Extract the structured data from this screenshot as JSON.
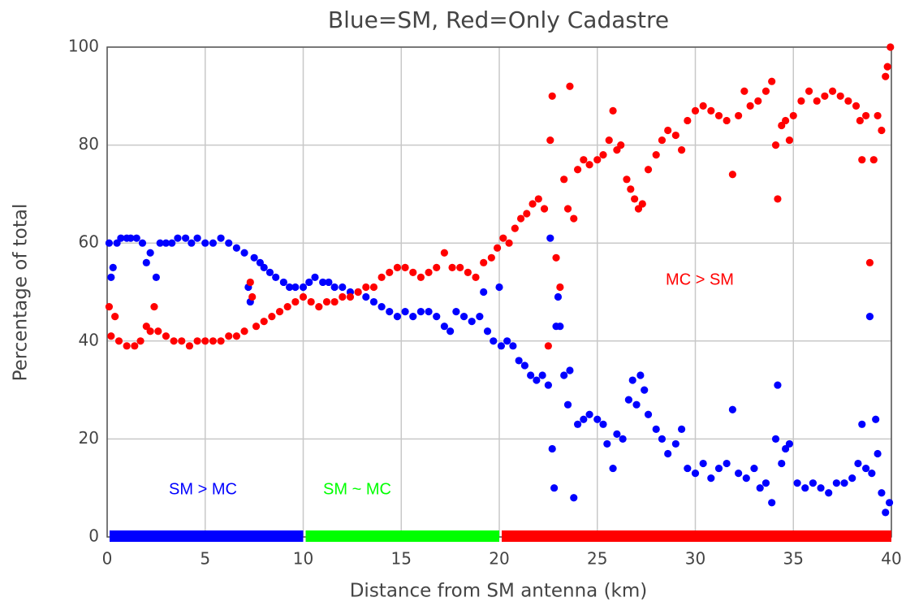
{
  "chart_data": {
    "type": "scatter",
    "title": "Blue=SM, Red=Only Cadastre",
    "xlabel": "Distance from SM antenna (km)",
    "ylabel": "Percentage of total",
    "xlim": [
      0,
      40
    ],
    "ylim": [
      0,
      100
    ],
    "xticks": [
      0,
      5,
      10,
      15,
      20,
      25,
      30,
      35,
      40
    ],
    "yticks": [
      0,
      20,
      40,
      60,
      80,
      100
    ],
    "grid": true,
    "series": [
      {
        "color": "#0000ff",
        "x": [
          0.1,
          0.2,
          0.3,
          0.5,
          0.7,
          1,
          1.2,
          1.5,
          1.8,
          2,
          2.2,
          2.5,
          2.7,
          3,
          3.3,
          3.6,
          4,
          4.3,
          4.6,
          5,
          5.4,
          5.8,
          6.2,
          6.6,
          7,
          7.2,
          7.3,
          7.5,
          7.8,
          8,
          8.3,
          8.6,
          9,
          9.3,
          9.6,
          10,
          10.3,
          10.6,
          11,
          11.3,
          11.6,
          12,
          12.4,
          12.8,
          13.2,
          13.6,
          14,
          14.4,
          14.8,
          15.2,
          15.6,
          16,
          16.4,
          16.8,
          17.2,
          17.5,
          17.8,
          18.2,
          18.6,
          19,
          19.2,
          19.4,
          19.7,
          20,
          20.1,
          20.4,
          20.7,
          21,
          21.3,
          21.6,
          21.9,
          22.2,
          22.5,
          22.6,
          22.7,
          22.8,
          22.9,
          23,
          23.1,
          23.3,
          23.5,
          23.6,
          23.8,
          24,
          24.3,
          24.6,
          25,
          25.3,
          25.5,
          25.8,
          26,
          26.3,
          26.6,
          26.8,
          27,
          27.2,
          27.4,
          27.6,
          28,
          28.3,
          28.6,
          29,
          29.3,
          29.6,
          30,
          30.4,
          30.8,
          31.2,
          31.6,
          31.9,
          32.2,
          32.6,
          33,
          33.3,
          33.6,
          33.9,
          34.1,
          34.2,
          34.4,
          34.6,
          34.8,
          35.2,
          35.6,
          36,
          36.4,
          36.8,
          37.2,
          37.6,
          38,
          38.3,
          38.5,
          38.7,
          38.9,
          39,
          39.2,
          39.3,
          39.5,
          39.7,
          39.9
        ],
        "values": [
          60,
          53,
          55,
          60,
          61,
          61,
          61,
          61,
          60,
          56,
          58,
          53,
          60,
          60,
          60,
          61,
          61,
          60,
          61,
          60,
          60,
          61,
          60,
          59,
          58,
          51,
          48,
          57,
          56,
          55,
          54,
          53,
          52,
          51,
          51,
          51,
          52,
          53,
          52,
          52,
          51,
          51,
          50,
          50,
          49,
          48,
          47,
          46,
          45,
          46,
          45,
          46,
          46,
          45,
          43,
          42,
          46,
          45,
          44,
          45,
          50,
          42,
          40,
          51,
          39,
          40,
          39,
          36,
          35,
          33,
          32,
          33,
          31,
          61,
          18,
          10,
          43,
          49,
          43,
          33,
          27,
          34,
          8,
          23,
          24,
          25,
          24,
          23,
          19,
          14,
          21,
          20,
          28,
          32,
          27,
          33,
          30,
          25,
          22,
          20,
          17,
          19,
          22,
          14,
          13,
          15,
          12,
          14,
          15,
          26,
          13,
          12,
          14,
          10,
          11,
          7,
          20,
          31,
          15,
          18,
          19,
          11,
          10,
          11,
          10,
          9,
          11,
          11,
          12,
          15,
          23,
          14,
          45,
          13,
          24,
          17,
          9,
          5,
          7
        ]
      },
      {
        "color": "#ff0000",
        "x": [
          0.1,
          0.2,
          0.4,
          0.6,
          1,
          1.4,
          1.7,
          2,
          2.2,
          2.4,
          2.6,
          3,
          3.4,
          3.8,
          4.2,
          4.6,
          5,
          5.4,
          5.8,
          6.2,
          6.6,
          7,
          7.3,
          7.4,
          7.6,
          8,
          8.4,
          8.8,
          9.2,
          9.6,
          10,
          10.4,
          10.8,
          11.2,
          11.6,
          12,
          12.4,
          12.8,
          13.2,
          13.6,
          14,
          14.4,
          14.8,
          15.2,
          15.6,
          16,
          16.4,
          16.8,
          17.2,
          17.6,
          18,
          18.4,
          18.8,
          19.2,
          19.6,
          19.9,
          20.2,
          20.5,
          20.8,
          21.1,
          21.4,
          21.7,
          22,
          22.3,
          22.5,
          22.6,
          22.7,
          22.9,
          23.1,
          23.3,
          23.5,
          23.6,
          23.8,
          24,
          24.3,
          24.6,
          25,
          25.3,
          25.6,
          25.8,
          26,
          26.2,
          26.5,
          26.7,
          26.9,
          27.1,
          27.3,
          27.6,
          28,
          28.3,
          28.6,
          29,
          29.3,
          29.6,
          30,
          30.4,
          30.8,
          31.2,
          31.6,
          31.9,
          32.2,
          32.5,
          32.8,
          33.2,
          33.6,
          33.9,
          34.1,
          34.2,
          34.4,
          34.6,
          34.8,
          35,
          35.4,
          35.8,
          36.2,
          36.6,
          37,
          37.4,
          37.8,
          38.2,
          38.4,
          38.5,
          38.7,
          38.9,
          39.1,
          39.3,
          39.5,
          39.7,
          39.8,
          39.95
        ],
        "values": [
          47,
          41,
          45,
          40,
          39,
          39,
          40,
          43,
          42,
          47,
          42,
          41,
          40,
          40,
          39,
          40,
          40,
          40,
          40,
          41,
          41,
          42,
          52,
          49,
          43,
          44,
          45,
          46,
          47,
          48,
          49,
          48,
          47,
          48,
          48,
          49,
          49,
          50,
          51,
          51,
          53,
          54,
          55,
          55,
          54,
          53,
          54,
          55,
          58,
          55,
          55,
          54,
          53,
          56,
          57,
          59,
          61,
          60,
          63,
          65,
          66,
          68,
          69,
          67,
          39,
          81,
          90,
          57,
          51,
          73,
          67,
          92,
          65,
          75,
          77,
          76,
          77,
          78,
          81,
          87,
          79,
          80,
          73,
          71,
          69,
          67,
          68,
          75,
          78,
          81,
          83,
          82,
          79,
          85,
          87,
          88,
          87,
          86,
          85,
          74,
          86,
          91,
          88,
          89,
          91,
          93,
          80,
          69,
          84,
          85,
          81,
          86,
          89,
          91,
          89,
          90,
          91,
          90,
          89,
          88,
          85,
          77,
          86,
          56,
          77,
          86,
          83,
          94,
          96,
          100
        ]
      }
    ],
    "bands": [
      {
        "x": [
          0,
          10
        ],
        "color": "#0000ff"
      },
      {
        "x": [
          10,
          20
        ],
        "color": "#00ff00"
      },
      {
        "x": [
          20,
          40
        ],
        "color": "#ff0000"
      }
    ],
    "annotations": [
      {
        "text": "SM > MC",
        "color": "#0000ff"
      },
      {
        "text": "SM ~ MC",
        "color": "#00ff00"
      },
      {
        "text": "MC > SM",
        "color": "#ff0000"
      }
    ]
  }
}
